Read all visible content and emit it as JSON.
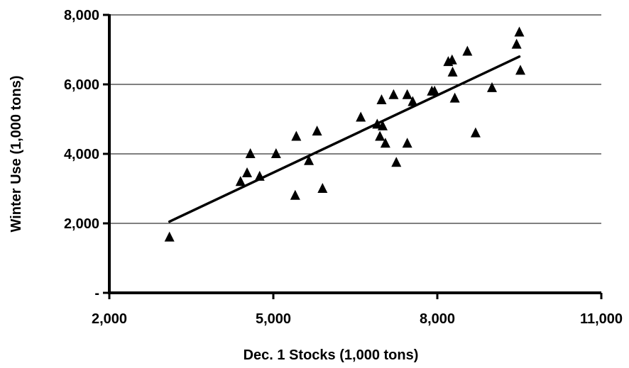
{
  "chart_data": {
    "type": "scatter",
    "title": "",
    "xlabel": "Dec. 1 Stocks (1,000 tons)",
    "ylabel": "Winter Use (1,000 tons)",
    "xlim": [
      2000,
      11000
    ],
    "ylim": [
      0,
      8000
    ],
    "x_ticks": [
      2000,
      5000,
      8000,
      11000
    ],
    "x_tick_labels": [
      "2,000",
      "5,000",
      "8,000",
      "11,000"
    ],
    "y_ticks": [
      0,
      2000,
      4000,
      6000,
      8000
    ],
    "y_tick_labels": [
      "-",
      "2,000",
      "4,000",
      "6,000",
      "8,000"
    ],
    "grid": "horizontal",
    "marker": "triangle",
    "marker_color": "#000000",
    "points": [
      {
        "x": 3100,
        "y": 1600
      },
      {
        "x": 4400,
        "y": 3200
      },
      {
        "x": 4520,
        "y": 3450
      },
      {
        "x": 4580,
        "y": 4000
      },
      {
        "x": 4750,
        "y": 3350
      },
      {
        "x": 5050,
        "y": 4000
      },
      {
        "x": 5400,
        "y": 2800
      },
      {
        "x": 5420,
        "y": 4500
      },
      {
        "x": 5650,
        "y": 3800
      },
      {
        "x": 5800,
        "y": 4650
      },
      {
        "x": 5900,
        "y": 3000
      },
      {
        "x": 6600,
        "y": 5050
      },
      {
        "x": 6900,
        "y": 4850
      },
      {
        "x": 6950,
        "y": 4500
      },
      {
        "x": 6980,
        "y": 5550
      },
      {
        "x": 7000,
        "y": 4800
      },
      {
        "x": 7050,
        "y": 4300
      },
      {
        "x": 7200,
        "y": 5700
      },
      {
        "x": 7250,
        "y": 3750
      },
      {
        "x": 7450,
        "y": 4300
      },
      {
        "x": 7450,
        "y": 5700
      },
      {
        "x": 7550,
        "y": 5500
      },
      {
        "x": 7900,
        "y": 5800
      },
      {
        "x": 7950,
        "y": 5800
      },
      {
        "x": 8200,
        "y": 6650
      },
      {
        "x": 8270,
        "y": 6700
      },
      {
        "x": 8280,
        "y": 6350
      },
      {
        "x": 8320,
        "y": 5600
      },
      {
        "x": 8550,
        "y": 6950
      },
      {
        "x": 8700,
        "y": 4600
      },
      {
        "x": 9000,
        "y": 5900
      },
      {
        "x": 9450,
        "y": 7150
      },
      {
        "x": 9500,
        "y": 7500
      },
      {
        "x": 9520,
        "y": 6400
      }
    ],
    "trendline": {
      "type": "linear",
      "x": [
        3100,
        9500
      ],
      "y": [
        2050,
        6800
      ]
    }
  }
}
